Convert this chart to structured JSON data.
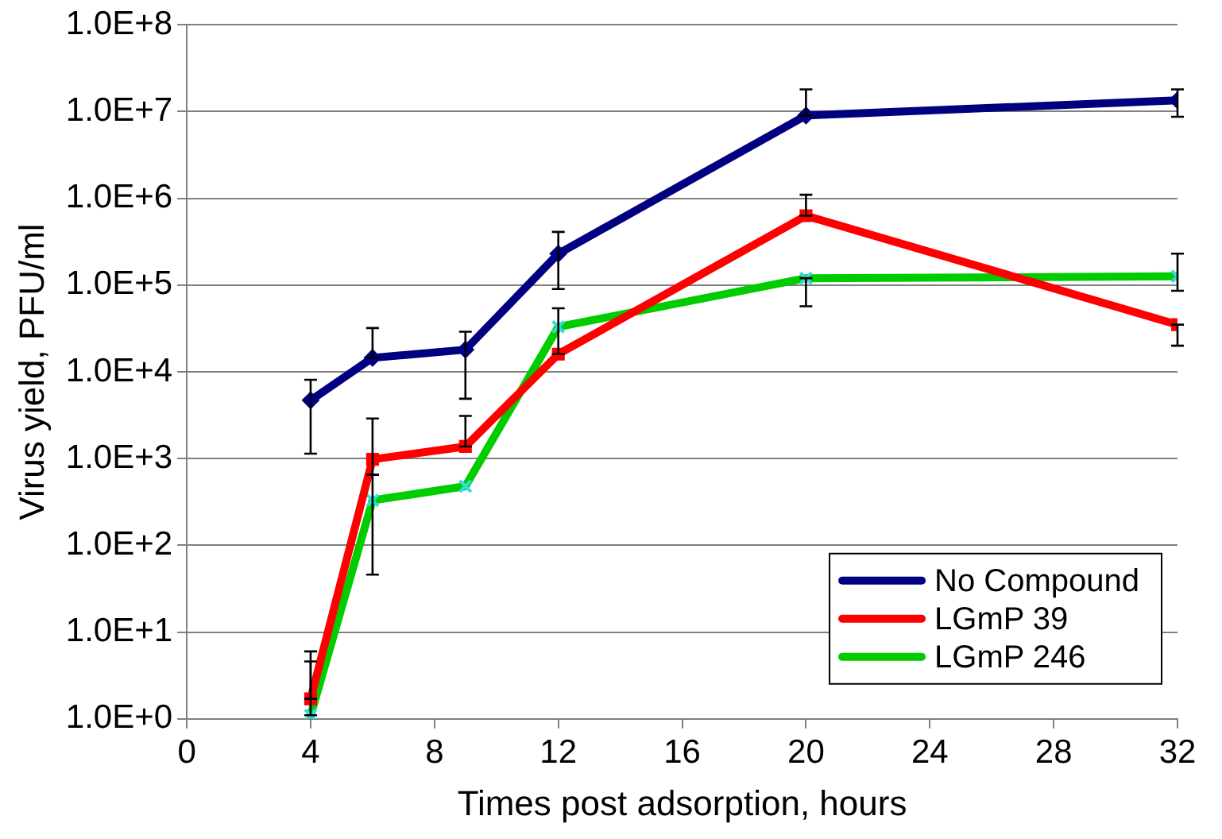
{
  "chart_data": {
    "type": "line",
    "xlabel": "Times post adsorption, hours",
    "ylabel": "Virus yield, PFU/ml",
    "x": [
      4,
      6,
      9,
      12,
      20,
      32
    ],
    "series": [
      {
        "name": "No Compound",
        "color": "#000080",
        "marker": "diamond",
        "values": [
          4700,
          14500,
          18000,
          230000,
          9000000,
          13500000
        ],
        "errors": [
          [
            1140,
            8100
          ],
          [
            14500,
            32000
          ],
          [
            4900,
            29000
          ],
          [
            90000,
            410000
          ],
          [
            9000000,
            18000000
          ],
          [
            8700000,
            18000000
          ]
        ]
      },
      {
        "name": "LGmP 39",
        "color": "#ff0000",
        "marker": "square",
        "values": [
          1.7,
          980,
          1380,
          16000,
          630000,
          35000
        ],
        "errors": [
          [
            1.7,
            6
          ],
          [
            650,
            2900
          ],
          [
            1380,
            3100
          ],
          [
            16000,
            54000
          ],
          [
            630000,
            1100000
          ],
          [
            20000,
            35000
          ]
        ]
      },
      {
        "name": "LGmP 246",
        "color": "#00cc00",
        "marker": "cross",
        "values": [
          1.1,
          330,
          480,
          33000,
          120000,
          126000
        ],
        "errors": [
          [
            1.1,
            4.6
          ],
          [
            46,
            650
          ],
          null,
          null,
          [
            57000,
            120000
          ],
          [
            86000,
            230000
          ]
        ]
      }
    ],
    "xlim": [
      0,
      32
    ],
    "xticks": [
      0,
      4,
      8,
      12,
      16,
      20,
      24,
      28,
      32
    ],
    "ylim": [
      1,
      100000000
    ],
    "log": "y",
    "yticks": [
      {
        "value": 1,
        "label": "1.0E+0"
      },
      {
        "value": 10,
        "label": "1.0E+1"
      },
      {
        "value": 100,
        "label": "1.0E+2"
      },
      {
        "value": 1000,
        "label": "1.0E+3"
      },
      {
        "value": 10000,
        "label": "1.0E+4"
      },
      {
        "value": 100000,
        "label": "1.0E+5"
      },
      {
        "value": 1000000,
        "label": "1.0E+6"
      },
      {
        "value": 10000000,
        "label": "1.0E+7"
      },
      {
        "value": 100000000,
        "label": "1.0E+8"
      }
    ],
    "grid": "y",
    "legend": "bottom right",
    "line_style": "solid"
  }
}
